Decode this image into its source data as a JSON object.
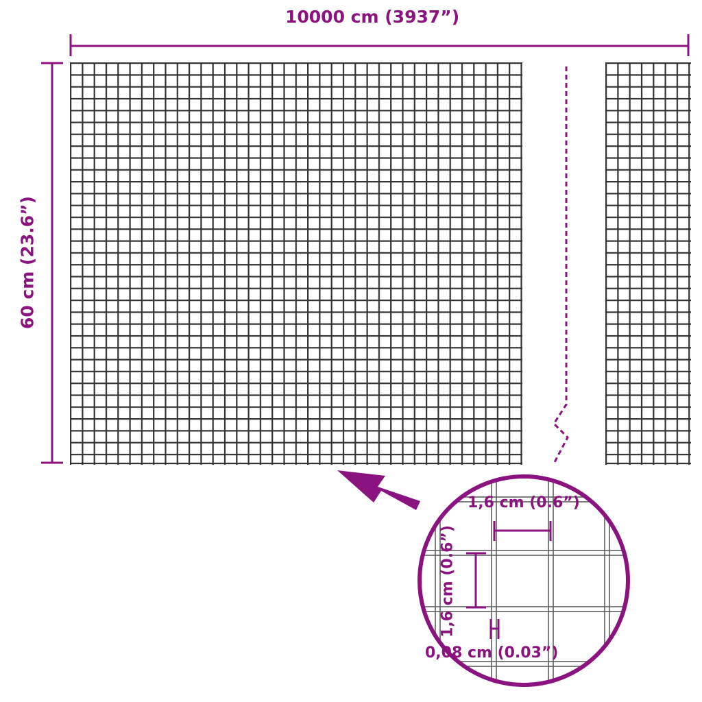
{
  "dimensions": {
    "width_label": "10000 cm (3937”)",
    "height_label": "60 cm (23.6”)",
    "mesh_width_label": "1,6 cm (0.6”)",
    "mesh_height_label": "1,6 cm (0.6”)",
    "wire_thickness_label": "0,08 cm (0.03”)"
  },
  "colors": {
    "accent": "#8a137f",
    "mesh": "#333333"
  },
  "icons": {
    "pointer": "arrow-icon",
    "detail": "magnifier-circle"
  }
}
